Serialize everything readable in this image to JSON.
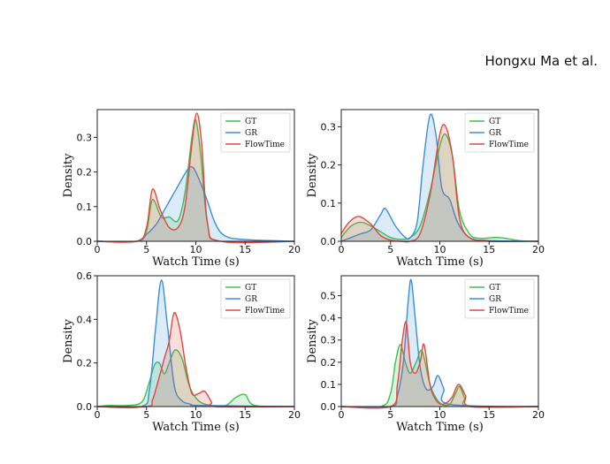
{
  "header": {
    "text": "Hongxu Ma et al."
  },
  "colors": {
    "GT": "#3cc24f",
    "GR": "#3a8fd8",
    "FlowTime": "#e3473f"
  },
  "chart_data": [
    {
      "type": "line",
      "xlabel": "Watch Time (s)",
      "ylabel": "Density",
      "xlim": [
        0,
        20
      ],
      "ylim": [
        0,
        0.38
      ],
      "xticks": [
        "0",
        "5",
        "10",
        "15",
        "20"
      ],
      "yticks": [
        "0.0",
        "0.1",
        "0.2",
        "0.3"
      ],
      "legend": "top-right",
      "series": [
        {
          "name": "GT",
          "x": [
            0,
            4,
            5,
            5.6,
            6.5,
            7.3,
            8.2,
            8.9,
            9.6,
            10,
            10.5,
            11.2,
            12.5,
            20
          ],
          "y": [
            0,
            0,
            0.03,
            0.12,
            0.07,
            0.07,
            0.06,
            0.14,
            0.3,
            0.35,
            0.25,
            0.05,
            0,
            0
          ]
        },
        {
          "name": "GR",
          "x": [
            0,
            4,
            5,
            6,
            7,
            8,
            9,
            9.5,
            10,
            11,
            12,
            13,
            15,
            20
          ],
          "y": [
            0,
            0,
            0.02,
            0.05,
            0.1,
            0.15,
            0.2,
            0.215,
            0.2,
            0.13,
            0.05,
            0.015,
            0.005,
            0
          ]
        },
        {
          "name": "FlowTime",
          "x": [
            0,
            4,
            5,
            5.6,
            6.4,
            7.3,
            8.2,
            8.9,
            9.6,
            10.1,
            10.6,
            11.2,
            12.5,
            20
          ],
          "y": [
            0,
            0,
            0.04,
            0.15,
            0.09,
            0.04,
            0.04,
            0.1,
            0.28,
            0.37,
            0.28,
            0.05,
            0,
            0
          ]
        }
      ]
    },
    {
      "type": "line",
      "xlabel": "Watch Time (s)",
      "ylabel": "Density",
      "xlim": [
        0,
        20
      ],
      "ylim": [
        0,
        0.345
      ],
      "xticks": [
        "0",
        "5",
        "10",
        "15",
        "20"
      ],
      "yticks": [
        "0.0",
        "0.1",
        "0.2",
        "0.3"
      ],
      "legend": "top-right",
      "series": [
        {
          "name": "GT",
          "x": [
            0,
            1,
            2,
            3,
            4,
            5,
            6,
            7,
            8,
            9,
            10,
            10.6,
            11.3,
            12,
            13,
            14,
            16,
            18,
            20
          ],
          "y": [
            0.01,
            0.04,
            0.05,
            0.04,
            0.025,
            0.01,
            0.005,
            0.01,
            0.04,
            0.13,
            0.25,
            0.28,
            0.22,
            0.08,
            0.02,
            0.008,
            0.01,
            0.002,
            0
          ]
        },
        {
          "name": "GR",
          "x": [
            0,
            1,
            2,
            3,
            4,
            4.5,
            5.5,
            6.5,
            7,
            7.7,
            8.3,
            9,
            9.6,
            10.2,
            11,
            11.8,
            13,
            15,
            20
          ],
          "y": [
            0,
            0.01,
            0.02,
            0.03,
            0.07,
            0.085,
            0.04,
            0.01,
            0.01,
            0.05,
            0.2,
            0.33,
            0.28,
            0.14,
            0.11,
            0.05,
            0.01,
            0.002,
            0
          ]
        },
        {
          "name": "FlowTime",
          "x": [
            0,
            0.8,
            1.8,
            3,
            4,
            5,
            6,
            7,
            8,
            9,
            10,
            10.6,
            11.3,
            12,
            13,
            15,
            20
          ],
          "y": [
            0.02,
            0.05,
            0.065,
            0.045,
            0.015,
            0.003,
            0,
            0,
            0.02,
            0.12,
            0.28,
            0.3,
            0.22,
            0.06,
            0.01,
            0,
            0
          ]
        }
      ]
    },
    {
      "type": "line",
      "xlabel": "Watch Time (s)",
      "ylabel": "Density",
      "xlim": [
        0,
        20
      ],
      "ylim": [
        0,
        0.6
      ],
      "xticks": [
        "0",
        "5",
        "10",
        "15",
        "20"
      ],
      "yticks": [
        "0.0",
        "0.2",
        "0.4",
        "0.6"
      ],
      "legend": "top-right",
      "series": [
        {
          "name": "GT",
          "x": [
            0,
            1,
            3,
            4.5,
            5.2,
            5.8,
            6.3,
            6.8,
            7.3,
            7.9,
            8.6,
            9.3,
            10,
            11,
            13,
            14,
            15,
            16,
            20
          ],
          "y": [
            0,
            0.005,
            0.005,
            0.02,
            0.1,
            0.19,
            0.2,
            0.15,
            0.2,
            0.26,
            0.22,
            0.1,
            0.04,
            0.01,
            0.005,
            0.04,
            0.055,
            0.005,
            0
          ]
        },
        {
          "name": "GR",
          "x": [
            0,
            4.5,
            5.3,
            5.9,
            6.5,
            7.1,
            7.8,
            8.5,
            9.5,
            10.5,
            20
          ],
          "y": [
            0,
            0,
            0.08,
            0.35,
            0.58,
            0.38,
            0.1,
            0.03,
            0.01,
            0.005,
            0
          ]
        },
        {
          "name": "FlowTime",
          "x": [
            0,
            5,
            5.6,
            6.2,
            6.8,
            7.3,
            7.8,
            8.4,
            9,
            9.6,
            10.3,
            10.9,
            11.6,
            12,
            20
          ],
          "y": [
            0,
            0,
            0.03,
            0.12,
            0.22,
            0.3,
            0.43,
            0.35,
            0.18,
            0.06,
            0.06,
            0.07,
            0.02,
            0,
            0
          ]
        }
      ]
    },
    {
      "type": "line",
      "xlabel": "Watch Time (s)",
      "ylabel": "Density",
      "xlim": [
        0,
        20
      ],
      "ylim": [
        0,
        0.59
      ],
      "xticks": [
        "0",
        "5",
        "10",
        "15",
        "20"
      ],
      "yticks": [
        "0.0",
        "0.1",
        "0.2",
        "0.3",
        "0.4",
        "0.5"
      ],
      "legend": "top-right",
      "series": [
        {
          "name": "GT",
          "x": [
            0,
            4,
            5,
            5.5,
            6,
            6.5,
            7,
            7.6,
            8.2,
            9,
            9.6,
            10.2,
            11,
            11.6,
            12,
            12.5,
            13,
            20
          ],
          "y": [
            0,
            0,
            0.06,
            0.2,
            0.28,
            0.2,
            0.15,
            0.2,
            0.25,
            0.1,
            0.04,
            0.01,
            0.01,
            0.06,
            0.09,
            0.04,
            0,
            0
          ]
        },
        {
          "name": "GR",
          "x": [
            0,
            5,
            5.7,
            6.3,
            6.8,
            7.1,
            7.5,
            8,
            8.6,
            9.3,
            9.8,
            10.4,
            11,
            20
          ],
          "y": [
            0,
            0,
            0.05,
            0.2,
            0.48,
            0.57,
            0.4,
            0.18,
            0.08,
            0.09,
            0.14,
            0.08,
            0.01,
            0
          ]
        },
        {
          "name": "FlowTime",
          "x": [
            0,
            5,
            5.7,
            6.2,
            6.6,
            7,
            7.5,
            8,
            8.4,
            9,
            9.6,
            10.3,
            11.2,
            11.9,
            12.6,
            13.2,
            20
          ],
          "y": [
            0,
            0,
            0.1,
            0.3,
            0.38,
            0.2,
            0.15,
            0.2,
            0.28,
            0.1,
            0.03,
            0.01,
            0.04,
            0.1,
            0.05,
            0,
            0
          ]
        }
      ]
    }
  ]
}
